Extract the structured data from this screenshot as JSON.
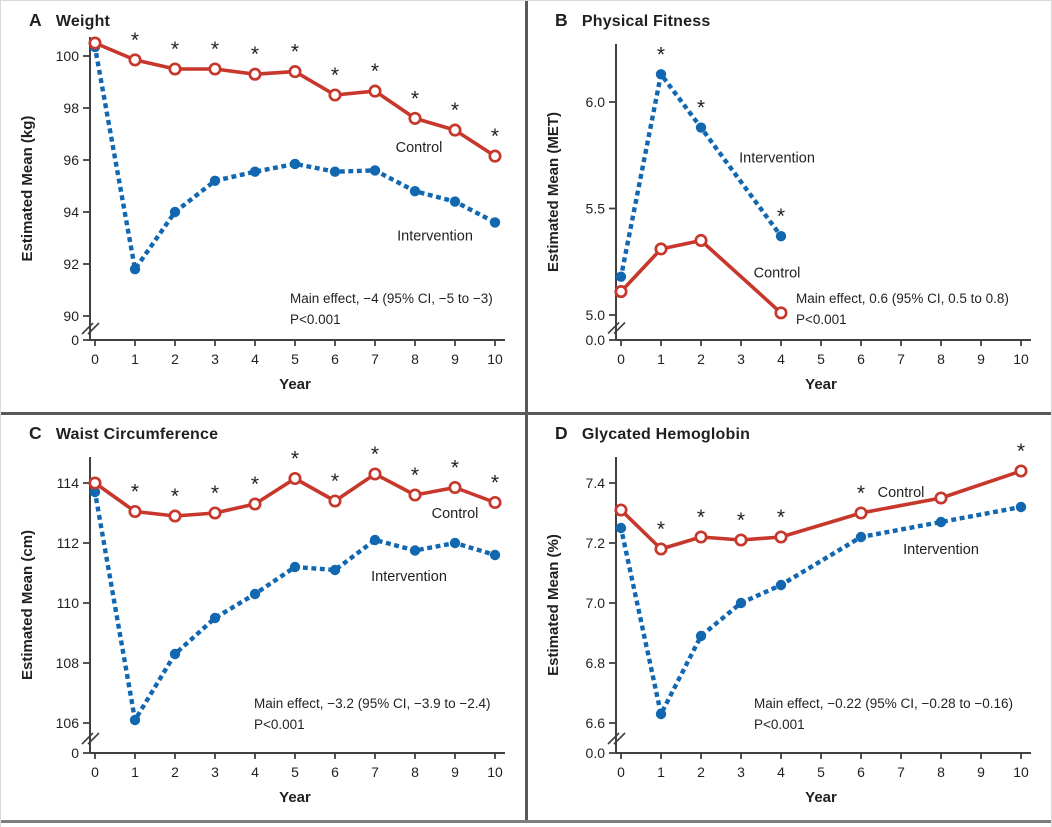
{
  "colors": {
    "control": "#c8372b",
    "intervention": "#1168b1",
    "text": "#231f20",
    "axis": "#404041",
    "divider": "#58595b"
  },
  "chart_data": [
    {
      "type": "line",
      "panel_label": "A",
      "title": "Weight",
      "ylabel": "Estimated Mean (kg)",
      "xlabel": "Year",
      "x_ticks": [
        0,
        1,
        2,
        3,
        4,
        5,
        6,
        7,
        8,
        9,
        10
      ],
      "y_ticks": [
        "100",
        "98",
        "96",
        "94",
        "92",
        "90"
      ],
      "y_zero_label": "0",
      "y_axis_break": true,
      "ylim": [
        90,
        100.8
      ],
      "grid": false,
      "series": [
        {
          "name": "Control",
          "role": "control",
          "x": [
            0,
            1,
            2,
            3,
            4,
            5,
            6,
            7,
            8,
            9,
            10
          ],
          "values": [
            100.5,
            99.85,
            99.5,
            99.5,
            99.3,
            99.4,
            98.5,
            98.65,
            97.6,
            97.15,
            96.15
          ],
          "label_pos": {
            "x": 8.1,
            "y": 96.5
          }
        },
        {
          "name": "Intervention",
          "role": "intervention",
          "x": [
            0,
            1,
            2,
            3,
            4,
            5,
            6,
            7,
            8,
            9,
            10
          ],
          "values": [
            100.35,
            91.8,
            94.0,
            95.2,
            95.55,
            95.85,
            95.55,
            95.6,
            94.8,
            94.4,
            93.6
          ],
          "label_pos": {
            "x": 8.5,
            "y": 93.1
          }
        }
      ],
      "stars": {
        "series": "Control",
        "years": [
          1,
          2,
          3,
          4,
          5,
          6,
          7,
          8,
          9,
          10
        ]
      },
      "annotation": {
        "line1": "Main effect, −4 (95% CI, −5 to −3)",
        "line2": "P<0.001"
      }
    },
    {
      "type": "line",
      "panel_label": "B",
      "title": "Physical Fitness",
      "ylabel": "Estimated Mean (MET)",
      "xlabel": "Year",
      "x_ticks": [
        0,
        1,
        2,
        3,
        4,
        5,
        6,
        7,
        8,
        9,
        10
      ],
      "y_ticks": [
        "6.0",
        "5.5",
        "5.0"
      ],
      "y_zero_label": "0.0",
      "y_axis_break": true,
      "ylim": [
        5.0,
        6.3
      ],
      "grid": false,
      "series": [
        {
          "name": "Control",
          "role": "control",
          "x": [
            0,
            1,
            2,
            4
          ],
          "values": [
            5.11,
            5.31,
            5.35,
            5.01
          ],
          "label_pos": {
            "x": 3.9,
            "y": 5.2
          }
        },
        {
          "name": "Intervention",
          "role": "intervention",
          "x": [
            0,
            1,
            2,
            4
          ],
          "values": [
            5.18,
            6.13,
            5.88,
            5.37
          ],
          "label_pos": {
            "x": 3.9,
            "y": 5.74
          }
        }
      ],
      "stars": {
        "series": "Intervention",
        "years": [
          1,
          2,
          4
        ]
      },
      "annotation": {
        "line1": "Main effect, 0.6 (95% CI, 0.5 to 0.8)",
        "line2": "P<0.001"
      }
    },
    {
      "type": "line",
      "panel_label": "C",
      "title": "Waist Circumference",
      "ylabel": "Estimated Mean (cm)",
      "xlabel": "Year",
      "x_ticks": [
        0,
        1,
        2,
        3,
        4,
        5,
        6,
        7,
        8,
        9,
        10
      ],
      "y_ticks": [
        "114",
        "112",
        "110",
        "108",
        "106"
      ],
      "y_zero_label": "0",
      "y_axis_break": true,
      "ylim": [
        106,
        114.5
      ],
      "grid": false,
      "series": [
        {
          "name": "Control",
          "role": "control",
          "x": [
            0,
            1,
            2,
            3,
            4,
            5,
            6,
            7,
            8,
            9,
            10
          ],
          "values": [
            114.0,
            113.05,
            112.9,
            113.0,
            113.3,
            114.15,
            113.4,
            114.3,
            113.6,
            113.85,
            113.35
          ],
          "label_pos": {
            "x": 9.0,
            "y": 113.0
          }
        },
        {
          "name": "Intervention",
          "role": "intervention",
          "x": [
            0,
            1,
            2,
            3,
            4,
            5,
            6,
            7,
            8,
            9,
            10
          ],
          "values": [
            113.7,
            106.1,
            108.3,
            109.5,
            110.3,
            111.2,
            111.1,
            112.1,
            111.75,
            112.0,
            111.6
          ],
          "label_pos": {
            "x": 7.85,
            "y": 110.9
          }
        }
      ],
      "stars": {
        "series": "Control",
        "years": [
          1,
          2,
          3,
          4,
          5,
          6,
          7,
          8,
          9,
          10
        ]
      },
      "annotation": {
        "line1": "Main effect, −3.2 (95% CI, −3.9 to −2.4)",
        "line2": "P<0.001"
      }
    },
    {
      "type": "line",
      "panel_label": "D",
      "title": "Glycated Hemoglobin",
      "ylabel": "Estimated Mean (%)",
      "xlabel": "Year",
      "x_ticks": [
        0,
        1,
        2,
        3,
        4,
        5,
        6,
        7,
        8,
        9,
        10
      ],
      "y_ticks": [
        "7.4",
        "7.2",
        "7.0",
        "6.8",
        "6.6"
      ],
      "y_zero_label": "0.0",
      "y_axis_break": true,
      "ylim": [
        6.6,
        7.5
      ],
      "grid": false,
      "series": [
        {
          "name": "Control",
          "role": "control",
          "x": [
            0,
            1,
            2,
            3,
            4,
            6,
            8,
            10
          ],
          "values": [
            7.31,
            7.18,
            7.22,
            7.21,
            7.22,
            7.3,
            7.35,
            7.44
          ],
          "label_pos": {
            "x": 7.0,
            "y": 7.37
          }
        },
        {
          "name": "Intervention",
          "role": "intervention",
          "x": [
            0,
            1,
            2,
            3,
            4,
            6,
            8,
            10
          ],
          "values": [
            7.25,
            6.63,
            6.89,
            7.0,
            7.06,
            7.22,
            7.27,
            7.32
          ],
          "label_pos": {
            "x": 8.0,
            "y": 7.18
          }
        }
      ],
      "stars": {
        "series": "Control",
        "years": [
          1,
          2,
          3,
          4,
          6,
          10
        ]
      },
      "annotation": {
        "line1": "Main effect, −0.22 (95% CI, −0.28 to −0.16)",
        "line2": "P<0.001"
      }
    }
  ]
}
